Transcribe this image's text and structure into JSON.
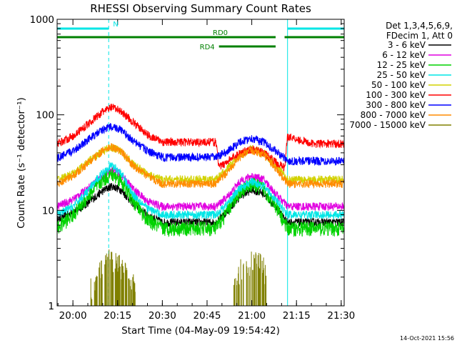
{
  "chart_data": {
    "type": "line",
    "title": "RHESSI Observing Summary Count Rates",
    "xlabel": "Start Time (04-May-09 19:54:42)",
    "ylabel": "Count Rate (s⁻¹ detector⁻¹)",
    "y_scale": "log",
    "ylim": [
      1,
      1000
    ],
    "xlim": [
      "19:54:42",
      "21:31:00"
    ],
    "x_ticks": [
      "20:00",
      "20:15",
      "20:30",
      "20:45",
      "21:00",
      "21:15",
      "21:30"
    ],
    "y_ticks": [
      "1",
      "10",
      "100",
      "1000"
    ],
    "grid": false,
    "legend": {
      "placement": "right",
      "header": [
        "Det 1,3,4,5,6,9,",
        "FDecim 1, Att 0"
      ]
    },
    "series": [
      {
        "name": "3 - 6 keV",
        "color": "#000000",
        "x": [
          "19:54:42",
          "20:00",
          "20:05",
          "20:10",
          "20:13",
          "20:16",
          "20:20",
          "20:25",
          "20:30",
          "20:40",
          "20:48",
          "20:52",
          "20:56",
          "21:00",
          "21:04",
          "21:08",
          "21:12",
          "21:20",
          "21:31"
        ],
        "y": [
          8,
          9.5,
          12,
          16,
          18,
          16.5,
          12,
          9,
          7.5,
          7.5,
          7.5,
          10,
          14,
          16.5,
          15,
          11,
          7.5,
          7.5,
          7.5
        ]
      },
      {
        "name": "6 - 12 keV",
        "color": "#e100e1",
        "x": [
          "19:54:42",
          "20:00",
          "20:05",
          "20:10",
          "20:13",
          "20:16",
          "20:20",
          "20:25",
          "20:30",
          "20:40",
          "20:48",
          "20:52",
          "20:56",
          "21:00",
          "21:04",
          "21:08",
          "21:12",
          "21:20",
          "21:31"
        ],
        "y": [
          11,
          13,
          17,
          23,
          27,
          24,
          17,
          12.5,
          11,
          11,
          11,
          14,
          20,
          23,
          21,
          15,
          11,
          11,
          11
        ]
      },
      {
        "name": "12 - 25 keV",
        "color": "#00d200",
        "x": [
          "19:54:42",
          "20:00",
          "20:05",
          "20:10",
          "20:13",
          "20:16",
          "20:20",
          "20:25",
          "20:30",
          "20:40",
          "20:48",
          "20:52",
          "20:56",
          "21:00",
          "21:04",
          "21:08",
          "21:12",
          "21:20",
          "21:31"
        ],
        "y": [
          6.5,
          9,
          14,
          21,
          24,
          21,
          13,
          8,
          6.5,
          6.5,
          6.5,
          10,
          16,
          19,
          17,
          11,
          6.5,
          6.5,
          6.5
        ]
      },
      {
        "name": "25 - 50 keV",
        "color": "#00e6e6",
        "x": [
          "19:54:42",
          "20:00",
          "20:05",
          "20:10",
          "20:13",
          "20:16",
          "20:20",
          "20:25",
          "20:30",
          "20:40",
          "20:48",
          "20:52",
          "20:56",
          "21:00",
          "21:04",
          "21:08",
          "21:12",
          "21:20",
          "21:31"
        ],
        "y": [
          9,
          11,
          16,
          25,
          30,
          25,
          15,
          10.5,
          9,
          9,
          9,
          12,
          17,
          20,
          18,
          13,
          9,
          9,
          9
        ]
      },
      {
        "name": "50 - 100 keV",
        "color": "#d2d200",
        "x": [
          "19:54:42",
          "20:00",
          "20:05",
          "20:10",
          "20:13",
          "20:16",
          "20:20",
          "20:25",
          "20:30",
          "20:40",
          "20:48",
          "20:52",
          "20:56",
          "21:00",
          "21:04",
          "21:08",
          "21:12",
          "21:20",
          "21:31"
        ],
        "y": [
          21,
          24,
          32,
          42,
          46,
          42,
          31,
          24,
          21,
          21,
          21,
          28,
          38,
          44,
          40,
          30,
          21,
          21,
          21
        ]
      },
      {
        "name": "100 - 300 keV",
        "color": "#ff0000",
        "x": [
          "19:54:42",
          "20:00",
          "20:05",
          "20:10",
          "20:13",
          "20:16",
          "20:20",
          "20:25",
          "20:30",
          "20:40",
          "20:48",
          "20:49",
          "20:52",
          "20:56",
          "21:00",
          "21:04",
          "21:08",
          "21:11",
          "21:12",
          "21:20",
          "21:31"
        ],
        "y": [
          50,
          60,
          80,
          108,
          120,
          110,
          85,
          62,
          52,
          52,
          52,
          28,
          33,
          40,
          44,
          40,
          32,
          28,
          60,
          50,
          50
        ]
      },
      {
        "name": "300 - 800 keV",
        "color": "#0000ff",
        "x": [
          "19:54:42",
          "20:00",
          "20:05",
          "20:10",
          "20:13",
          "20:16",
          "20:20",
          "20:25",
          "20:30",
          "20:40",
          "20:48",
          "20:52",
          "20:56",
          "21:00",
          "21:04",
          "21:08",
          "21:12",
          "21:20",
          "21:31"
        ],
        "y": [
          35,
          42,
          55,
          70,
          76,
          70,
          54,
          42,
          36,
          36,
          36,
          42,
          52,
          57,
          52,
          42,
          33,
          33,
          33
        ]
      },
      {
        "name": "800 - 7000 keV",
        "color": "#ff8c00",
        "x": [
          "19:54:42",
          "20:00",
          "20:05",
          "20:10",
          "20:13",
          "20:16",
          "20:20",
          "20:25",
          "20:30",
          "20:40",
          "20:48",
          "20:52",
          "20:56",
          "21:00",
          "21:04",
          "21:08",
          "21:12",
          "21:20",
          "21:31"
        ],
        "y": [
          19,
          23,
          31,
          42,
          46,
          42,
          30,
          23,
          19,
          19,
          19,
          26,
          36,
          43,
          38,
          28,
          19,
          19,
          19
        ]
      },
      {
        "name": "7000 - 15000 keV",
        "color": "#808000",
        "x": [
          "20:06",
          "20:09",
          "20:12",
          "20:15",
          "20:17",
          "20:19",
          "20:21",
          "20:54",
          "20:56",
          "20:58",
          "21:00",
          "21:02",
          "21:04",
          "21:05"
        ],
        "y": [
          1.5,
          2.5,
          3,
          3,
          2.5,
          2,
          1.5,
          1.5,
          2.5,
          2.5,
          3,
          3,
          2.5,
          2
        ]
      }
    ],
    "annotations": [
      {
        "label": "N",
        "color": "#00e6e6",
        "y": 800,
        "segments": [
          [
            "19:54:42",
            "20:12"
          ],
          [
            "21:12",
            "21:31"
          ]
        ]
      },
      {
        "label": "RD0",
        "color": "#008000",
        "y": 650,
        "segments": [
          [
            "19:54:42",
            "21:08"
          ],
          [
            "21:11",
            "21:31"
          ]
        ]
      },
      {
        "label": "RD4",
        "color": "#008000",
        "y": 520,
        "segments": [
          [
            "20:49",
            "21:08"
          ]
        ]
      }
    ],
    "vlines": [
      {
        "x": "19:54:42",
        "color": "#00e6e6",
        "style": "solid"
      },
      {
        "x": "20:12",
        "color": "#00e6e6",
        "style": "dashed"
      },
      {
        "x": "21:12",
        "color": "#00e6e6",
        "style": "solid"
      },
      {
        "x": "21:31",
        "color": "#00e6e6",
        "style": "dashed"
      }
    ],
    "footer": "14-Oct-2021 15:56"
  }
}
